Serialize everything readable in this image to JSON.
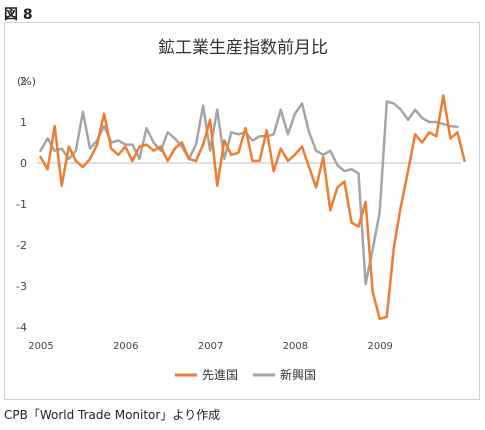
{
  "figure_label": "図 8",
  "source_note": "CPB「World Trade Monitor」より作成",
  "colors": {
    "advanced": "#ED7D31",
    "emerging": "#A5A5A5",
    "zero_line": "#BFBFBF",
    "grid": "#E6E6E6"
  },
  "chart_data": {
    "type": "line",
    "title": "鉱工業生産指数前月比",
    "ylabel": "(%)",
    "xlabel": "",
    "ylim": [
      -4,
      2
    ],
    "yticks": [
      2,
      1,
      0,
      -1,
      -2,
      -3,
      -4
    ],
    "x_tick_labels": [
      "2005",
      "2006",
      "2007",
      "2008",
      "2009"
    ],
    "x_start": "2005-01",
    "grid": false,
    "legend_position": "bottom",
    "series": [
      {
        "name": "先進国",
        "values": [
          0.15,
          -0.15,
          0.9,
          -0.55,
          0.4,
          0.05,
          -0.1,
          0.1,
          0.45,
          1.2,
          0.35,
          0.2,
          0.4,
          0.05,
          0.4,
          0.45,
          0.3,
          0.4,
          0.05,
          0.35,
          0.5,
          0.1,
          0.05,
          0.45,
          1.05,
          -0.55,
          0.55,
          0.2,
          0.25,
          0.85,
          0.05,
          0.05,
          0.8,
          -0.2,
          0.35,
          0.05,
          0.2,
          0.4,
          -0.1,
          -0.6,
          0.15,
          -1.15,
          -0.6,
          -0.45,
          -1.45,
          -1.55,
          -0.95,
          -3.15,
          -3.8,
          -3.75,
          -2.05,
          -1.05,
          -0.2,
          0.7,
          0.5,
          0.75,
          0.65,
          1.65,
          0.6,
          0.75,
          0.05
        ]
      },
      {
        "name": "新興国",
        "values": [
          0.3,
          0.6,
          0.3,
          0.35,
          0.1,
          0.3,
          1.25,
          0.35,
          0.55,
          0.9,
          0.5,
          0.55,
          0.45,
          0.45,
          0.1,
          0.85,
          0.5,
          0.3,
          0.75,
          0.6,
          0.4,
          0.1,
          0.45,
          1.4,
          0.3,
          1.3,
          0.1,
          0.75,
          0.7,
          0.75,
          0.55,
          0.65,
          0.65,
          0.7,
          1.3,
          0.7,
          1.2,
          1.45,
          0.75,
          0.3,
          0.2,
          0.3,
          -0.05,
          -0.2,
          -0.15,
          -0.25,
          -2.95,
          -2.1,
          -1.2,
          1.5,
          1.45,
          1.3,
          1.05,
          1.3,
          1.1,
          1.0,
          1.0,
          0.95,
          0.9,
          0.88
        ]
      }
    ]
  }
}
